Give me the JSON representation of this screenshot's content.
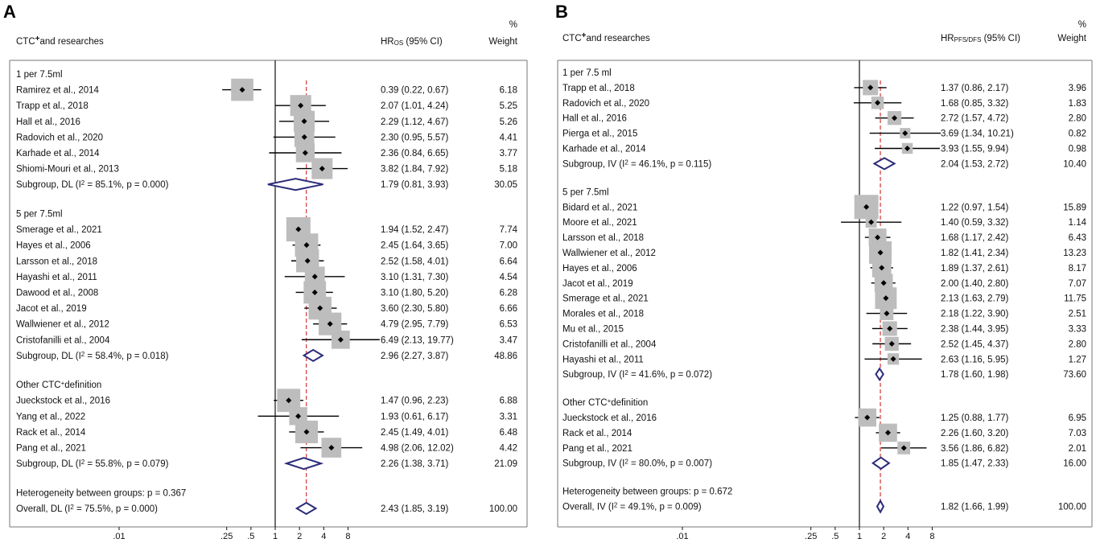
{
  "chart_data": [
    {
      "type": "forest",
      "panel": "A",
      "header": {
        "study": "CTC",
        "study_sup": "+",
        "study_tail": "and researches",
        "effect": "HR",
        "effect_sub": "OS",
        "effect_tail": " (95% CI)",
        "weight_pct": "%",
        "weight": "Weight"
      },
      "x_ticks": [
        ".01",
        ".25",
        ".5",
        "1",
        "2",
        "4",
        "8"
      ],
      "x_tick_values": [
        0.01,
        0.25,
        0.5,
        1,
        2,
        4,
        8
      ],
      "overall_line": 2.43,
      "groups": [
        {
          "name": "1 per 7.5ml",
          "studies": [
            {
              "label": "Ramirez et al., 2014",
              "hr": 0.39,
              "lo": 0.22,
              "hi": 0.67,
              "ci": "0.39 (0.22, 0.67)",
              "weight": "6.18",
              "w": 6.18
            },
            {
              "label": "Trapp et al., 2018",
              "hr": 2.07,
              "lo": 1.01,
              "hi": 4.24,
              "ci": "2.07 (1.01, 4.24)",
              "weight": "5.25",
              "w": 5.25
            },
            {
              "label": "Hall et al., 2016",
              "hr": 2.29,
              "lo": 1.12,
              "hi": 4.67,
              "ci": "2.29 (1.12, 4.67)",
              "weight": "5.26",
              "w": 5.26
            },
            {
              "label": "Radovich et al., 2020",
              "hr": 2.3,
              "lo": 0.95,
              "hi": 5.57,
              "ci": "2.30 (0.95, 5.57)",
              "weight": "4.41",
              "w": 4.41
            },
            {
              "label": "Karhade et al., 2014",
              "hr": 2.36,
              "lo": 0.84,
              "hi": 6.65,
              "ci": "2.36 (0.84, 6.65)",
              "weight": "3.77",
              "w": 3.77
            },
            {
              "label": "Shiomi-Mouri et al., 2013",
              "hr": 3.82,
              "lo": 1.84,
              "hi": 7.92,
              "ci": "3.82 (1.84, 7.92)",
              "weight": "5.18",
              "w": 5.18
            }
          ],
          "subgroup": {
            "label_pre": "Subgroup, DL (I",
            "sup": "2",
            "label_post": " = 85.1%, p = 0.000)",
            "hr": 1.79,
            "lo": 0.81,
            "hi": 3.93,
            "ci": "1.79 (0.81, 3.93)",
            "weight": "30.05"
          }
        },
        {
          "name": "5 per 7.5ml",
          "studies": [
            {
              "label": "Smerage et al., 2021",
              "hr": 1.94,
              "lo": 1.52,
              "hi": 2.47,
              "ci": "1.94 (1.52, 2.47)",
              "weight": "7.74",
              "w": 7.74
            },
            {
              "label": "Hayes et al., 2006",
              "hr": 2.45,
              "lo": 1.64,
              "hi": 3.65,
              "ci": "2.45 (1.64, 3.65)",
              "weight": "7.00",
              "w": 7.0
            },
            {
              "label": "Larsson et al., 2018",
              "hr": 2.52,
              "lo": 1.58,
              "hi": 4.01,
              "ci": "2.52 (1.58, 4.01)",
              "weight": "6.64",
              "w": 6.64
            },
            {
              "label": "Hayashi et al., 2011",
              "hr": 3.1,
              "lo": 1.31,
              "hi": 7.3,
              "ci": "3.10 (1.31, 7.30)",
              "weight": "4.54",
              "w": 4.54
            },
            {
              "label": "Dawood  et al., 2008",
              "hr": 3.1,
              "lo": 1.8,
              "hi": 5.2,
              "ci": "3.10 (1.80, 5.20)",
              "weight": "6.28",
              "w": 6.28
            },
            {
              "label": "Jacot et al., 2019",
              "hr": 3.6,
              "lo": 2.3,
              "hi": 5.8,
              "ci": "3.60 (2.30, 5.80)",
              "weight": "6.66",
              "w": 6.66
            },
            {
              "label": "Wallwiener et al., 2012",
              "hr": 4.79,
              "lo": 2.95,
              "hi": 7.79,
              "ci": "4.79 (2.95, 7.79)",
              "weight": "6.53",
              "w": 6.53
            },
            {
              "label": "Cristofanilli et al., 2004",
              "hr": 6.49,
              "lo": 2.13,
              "hi": 19.77,
              "ci": "6.49 (2.13, 19.77)",
              "weight": "3.47",
              "w": 3.47
            }
          ],
          "subgroup": {
            "label_pre": "Subgroup, DL (I",
            "sup": "2",
            "label_post": " = 58.4%, p = 0.018)",
            "hr": 2.96,
            "lo": 2.27,
            "hi": 3.87,
            "ci": "2.96 (2.27, 3.87)",
            "weight": "48.86"
          }
        },
        {
          "name_pre": "Other CTC",
          "name_sup": "+",
          "name_post": "definition",
          "studies": [
            {
              "label": "Jueckstock et al., 2016",
              "hr": 1.47,
              "lo": 0.96,
              "hi": 2.23,
              "ci": "1.47 (0.96, 2.23)",
              "weight": "6.88",
              "w": 6.88
            },
            {
              "label": "Yang et al., 2022",
              "hr": 1.93,
              "lo": 0.61,
              "hi": 6.17,
              "ci": "1.93 (0.61, 6.17)",
              "weight": "3.31",
              "w": 3.31
            },
            {
              "label": "Rack et al., 2014",
              "hr": 2.45,
              "lo": 1.49,
              "hi": 4.01,
              "ci": "2.45 (1.49, 4.01)",
              "weight": "6.48",
              "w": 6.48
            },
            {
              "label": "Pang et al., 2021",
              "hr": 4.98,
              "lo": 2.06,
              "hi": 12.02,
              "ci": "4.98 (2.06, 12.02)",
              "weight": "4.42",
              "w": 4.42
            }
          ],
          "subgroup": {
            "label_pre": "Subgroup, DL (I",
            "sup": "2",
            "label_post": " = 55.8%, p = 0.079)",
            "hr": 2.26,
            "lo": 1.38,
            "hi": 3.71,
            "ci": "2.26 (1.38, 3.71)",
            "weight": "21.09"
          }
        }
      ],
      "heterogeneity": "Heterogeneity between groups: p = 0.367",
      "overall": {
        "label_pre": "Overall, DL (I",
        "sup": "2",
        "label_post": " = 75.5%, p = 0.000)",
        "hr": 2.43,
        "lo": 1.85,
        "hi": 3.19,
        "ci": "2.43 (1.85, 3.19)",
        "weight": "100.00"
      }
    },
    {
      "type": "forest",
      "panel": "B",
      "header": {
        "study": "CTC",
        "study_sup": "+",
        "study_tail": "and researches",
        "effect": "HR",
        "effect_sub": "PFS/DFS",
        "effect_tail": " (95% CI)",
        "weight_pct": "%",
        "weight": "Weight"
      },
      "x_ticks": [
        ".01",
        ".25",
        ".5",
        "1",
        "2",
        "4",
        "8"
      ],
      "x_tick_values": [
        0.01,
        0.25,
        0.5,
        1,
        2,
        4,
        8
      ],
      "overall_line": 1.82,
      "groups": [
        {
          "name": "1 per 7.5 ml",
          "studies": [
            {
              "label": "Trapp et al., 2018",
              "hr": 1.37,
              "lo": 0.86,
              "hi": 2.17,
              "ci": "1.37 (0.86, 2.17)",
              "weight": "3.96",
              "w": 3.96
            },
            {
              "label": "Radovich et al., 2020",
              "hr": 1.68,
              "lo": 0.85,
              "hi": 3.32,
              "ci": "1.68 (0.85, 3.32)",
              "weight": "1.83",
              "w": 1.83
            },
            {
              "label": "Hall et al., 2016",
              "hr": 2.72,
              "lo": 1.57,
              "hi": 4.72,
              "ci": "2.72 (1.57, 4.72)",
              "weight": "2.80",
              "w": 2.8
            },
            {
              "label": "Pierga et al., 2015",
              "hr": 3.69,
              "lo": 1.34,
              "hi": 10.21,
              "ci": "3.69 (1.34, 10.21)",
              "weight": "0.82",
              "w": 0.82
            },
            {
              "label": "Karhade et al., 2014",
              "hr": 3.93,
              "lo": 1.55,
              "hi": 9.94,
              "ci": "3.93 (1.55, 9.94)",
              "weight": "0.98",
              "w": 0.98
            }
          ],
          "subgroup": {
            "label_pre": "Subgroup, IV (I",
            "sup": "2",
            "label_post": " = 46.1%, p = 0.115)",
            "hr": 2.04,
            "lo": 1.53,
            "hi": 2.72,
            "ci": "2.04 (1.53, 2.72)",
            "weight": "10.40"
          }
        },
        {
          "name": "5 per 7.5ml",
          "studies": [
            {
              "label": "Bidard et al., 2021",
              "hr": 1.22,
              "lo": 0.97,
              "hi": 1.54,
              "ci": "1.22 (0.97, 1.54)",
              "weight": "15.89",
              "w": 15.89
            },
            {
              "label": "Moore  et al., 2021",
              "hr": 1.4,
              "lo": 0.59,
              "hi": 3.32,
              "ci": "1.40 (0.59, 3.32)",
              "weight": "1.14",
              "w": 1.14
            },
            {
              "label": "Larsson et al., 2018",
              "hr": 1.68,
              "lo": 1.17,
              "hi": 2.42,
              "ci": "1.68 (1.17, 2.42)",
              "weight": "6.43",
              "w": 6.43
            },
            {
              "label": "Wallwiener et al., 2012",
              "hr": 1.82,
              "lo": 1.41,
              "hi": 2.34,
              "ci": "1.82 (1.41, 2.34)",
              "weight": "13.23",
              "w": 13.23
            },
            {
              "label": "Hayes et al., 2006",
              "hr": 1.89,
              "lo": 1.37,
              "hi": 2.61,
              "ci": "1.89 (1.37, 2.61)",
              "weight": "8.17",
              "w": 8.17
            },
            {
              "label": "Jacot et al., 2019",
              "hr": 2.0,
              "lo": 1.4,
              "hi": 2.8,
              "ci": "2.00 (1.40, 2.80)",
              "weight": "7.07",
              "w": 7.07
            },
            {
              "label": "Smerage et al., 2021",
              "hr": 2.13,
              "lo": 1.63,
              "hi": 2.79,
              "ci": "2.13 (1.63, 2.79)",
              "weight": "11.75",
              "w": 11.75
            },
            {
              "label": "Morales et al., 2018",
              "hr": 2.18,
              "lo": 1.22,
              "hi": 3.9,
              "ci": "2.18 (1.22, 3.90)",
              "weight": "2.51",
              "w": 2.51
            },
            {
              "label": "Mu et al., 2015",
              "hr": 2.38,
              "lo": 1.44,
              "hi": 3.95,
              "ci": "2.38 (1.44, 3.95)",
              "weight": "3.33",
              "w": 3.33
            },
            {
              "label": "Cristofanilli et al., 2004",
              "hr": 2.52,
              "lo": 1.45,
              "hi": 4.37,
              "ci": "2.52 (1.45, 4.37)",
              "weight": "2.80",
              "w": 2.8
            },
            {
              "label": "Hayashi et al., 2011",
              "hr": 2.63,
              "lo": 1.16,
              "hi": 5.95,
              "ci": "2.63 (1.16, 5.95)",
              "weight": "1.27",
              "w": 1.27
            }
          ],
          "subgroup": {
            "label_pre": "Subgroup, IV (I",
            "sup": "2",
            "label_post": " = 41.6%, p = 0.072)",
            "hr": 1.78,
            "lo": 1.6,
            "hi": 1.98,
            "ci": "1.78 (1.60, 1.98)",
            "weight": "73.60"
          }
        },
        {
          "name_pre": "Other CTC",
          "name_sup": "+",
          "name_post": "definition",
          "studies": [
            {
              "label": "Jueckstock et al., 2016",
              "hr": 1.25,
              "lo": 0.88,
              "hi": 1.77,
              "ci": "1.25 (0.88, 1.77)",
              "weight": "6.95",
              "w": 6.95
            },
            {
              "label": "Rack et al., 2014",
              "hr": 2.26,
              "lo": 1.6,
              "hi": 3.2,
              "ci": "2.26 (1.60, 3.20)",
              "weight": "7.03",
              "w": 7.03
            },
            {
              "label": "Pang et al., 2021",
              "hr": 3.56,
              "lo": 1.86,
              "hi": 6.82,
              "ci": "3.56 (1.86, 6.82)",
              "weight": "2.01",
              "w": 2.01
            }
          ],
          "subgroup": {
            "label_pre": "Subgroup, IV (I",
            "sup": "2",
            "label_post": " = 80.0%, p = 0.007)",
            "hr": 1.85,
            "lo": 1.47,
            "hi": 2.33,
            "ci": "1.85 (1.47, 2.33)",
            "weight": "16.00"
          }
        }
      ],
      "heterogeneity": "Heterogeneity between groups: p = 0.672",
      "overall": {
        "label_pre": "Overall, IV (I",
        "sup": "2",
        "label_post": " = 49.1%, p = 0.009)",
        "hr": 1.82,
        "lo": 1.66,
        "hi": 1.99,
        "ci": "1.82 (1.66, 1.99)",
        "weight": "100.00"
      }
    }
  ],
  "colors": {
    "marker": "#000000",
    "box": "#bdbdbd",
    "diamond": "#2b2b7a",
    "overall_line": "#d64545",
    "frame": "#777777"
  }
}
